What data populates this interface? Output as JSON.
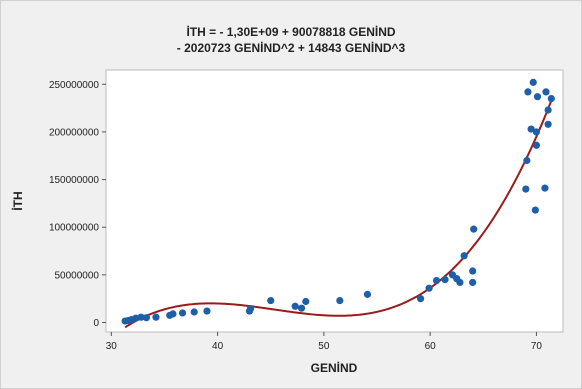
{
  "chart_data": {
    "type": "scatter",
    "title_lines": [
      "İTH = - 1,30E+09 + 90078818 GENİND",
      "- 2020723 GENİND^2 + 14843 GENİND^3"
    ],
    "xlabel": "GENİND",
    "ylabel": "İTH",
    "xlim": [
      29.5,
      72.5
    ],
    "ylim": [
      -10000000,
      265000000
    ],
    "x_ticks": [
      30,
      40,
      50,
      60,
      70
    ],
    "x_tick_labels": [
      "30",
      "40",
      "50",
      "60",
      "70"
    ],
    "y_ticks": [
      0,
      50000000,
      100000000,
      150000000,
      200000000,
      250000000
    ],
    "y_tick_labels": [
      "0",
      "50000000",
      "100000000",
      "150000000",
      "200000000",
      "250000000"
    ],
    "grid": false,
    "fit": {
      "type": "cubic",
      "coefficients": [
        -1300000000,
        90078818,
        -2020723,
        14843
      ]
    },
    "points": [
      [
        31.3,
        1500000
      ],
      [
        31.6,
        2000000
      ],
      [
        31.9,
        3000000
      ],
      [
        32.3,
        4500000
      ],
      [
        32.8,
        5500000
      ],
      [
        33.3,
        5000000
      ],
      [
        34.2,
        5500000
      ],
      [
        35.5,
        7500000
      ],
      [
        35.8,
        9000000
      ],
      [
        36.7,
        10000000
      ],
      [
        37.8,
        11000000
      ],
      [
        39.0,
        12000000
      ],
      [
        43.0,
        12000000
      ],
      [
        43.1,
        14500000
      ],
      [
        45.0,
        23000000
      ],
      [
        47.3,
        17000000
      ],
      [
        47.9,
        15000000
      ],
      [
        48.3,
        22000000
      ],
      [
        51.5,
        23000000
      ],
      [
        54.1,
        29500000
      ],
      [
        59.1,
        25000000
      ],
      [
        59.9,
        36000000
      ],
      [
        60.6,
        44000000
      ],
      [
        61.4,
        45000000
      ],
      [
        62.1,
        50000000
      ],
      [
        62.5,
        46000000
      ],
      [
        62.8,
        42000000
      ],
      [
        63.2,
        70000000
      ],
      [
        64.0,
        42000000
      ],
      [
        64.0,
        54000000
      ],
      [
        64.1,
        98000000
      ],
      [
        69.0,
        140000000
      ],
      [
        69.1,
        170000000
      ],
      [
        69.2,
        242000000
      ],
      [
        69.5,
        203000000
      ],
      [
        69.7,
        252000000
      ],
      [
        69.9,
        118000000
      ],
      [
        70.0,
        200000000
      ],
      [
        70.0,
        186000000
      ],
      [
        70.1,
        237000000
      ],
      [
        70.8,
        141000000
      ],
      [
        70.9,
        242000000
      ],
      [
        71.1,
        223000000
      ],
      [
        71.1,
        208000000
      ],
      [
        71.4,
        235000000
      ]
    ],
    "point_color": "#1f5fa8",
    "fit_color": "#9b1b1b"
  }
}
